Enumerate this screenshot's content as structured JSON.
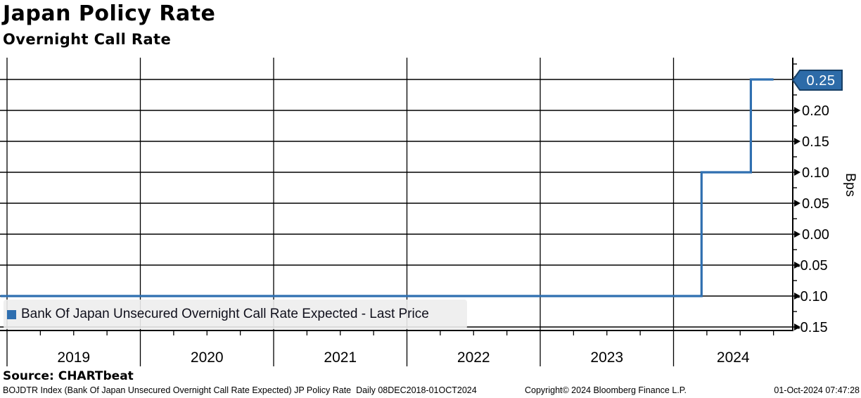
{
  "header": {
    "title": "Japan Policy Rate",
    "subtitle": "Overnight Call Rate"
  },
  "chart_data": {
    "type": "line",
    "line_style": "step",
    "title": "Japan Policy Rate",
    "subtitle": "Overnight Call Rate",
    "ylabel": "Bps",
    "ylabel_side": "right",
    "grid": true,
    "ylim": [
      -0.156,
      0.285
    ],
    "xlim_years": [
      2018.94,
      2024.9
    ],
    "y_ticks": [
      0.25,
      0.2,
      0.15,
      0.1,
      0.05,
      0.0,
      -0.05,
      -0.1,
      -0.15
    ],
    "y_tick_labels": [
      "0.25",
      "0.20",
      "0.15",
      "0.10",
      "0.05",
      "0.00",
      "-0.05",
      "-0.10",
      "-0.15"
    ],
    "x_tick_labels": [
      "2019",
      "2020",
      "2021",
      "2022",
      "2023",
      "2024"
    ],
    "legend_position": "bottom-left",
    "series": [
      {
        "name": "Bank Of Japan Unsecured Overnight Call Rate Expected - Last Price",
        "color": "#2f6fb0",
        "points": [
          {
            "x": 2018.94,
            "y": -0.1
          },
          {
            "x": 2024.21,
            "y": -0.1
          },
          {
            "x": 2024.21,
            "y": 0.1
          },
          {
            "x": 2024.58,
            "y": 0.1
          },
          {
            "x": 2024.58,
            "y": 0.25
          },
          {
            "x": 2024.75,
            "y": 0.25
          }
        ]
      }
    ],
    "last_price_badge": {
      "value": "0.25",
      "fill": "#2d6ba8",
      "border": "#173f66",
      "text_color": "#ffffff"
    }
  },
  "legend": {
    "label": "Bank Of Japan Unsecured Overnight Call Rate Expected - Last Price",
    "swatch_color": "#2f6fb0"
  },
  "source": {
    "label": "Source: CHARTbeat"
  },
  "footer": {
    "left": "BOJDTR Index (Bank Of Japan Unsecured Overnight Call Rate Expected) JP Policy Rate  Daily 08DEC2018-01OCT2024",
    "center": "Copyright© 2024 Bloomberg Finance L.P.",
    "right": "01-Oct-2024 07:47:28"
  }
}
